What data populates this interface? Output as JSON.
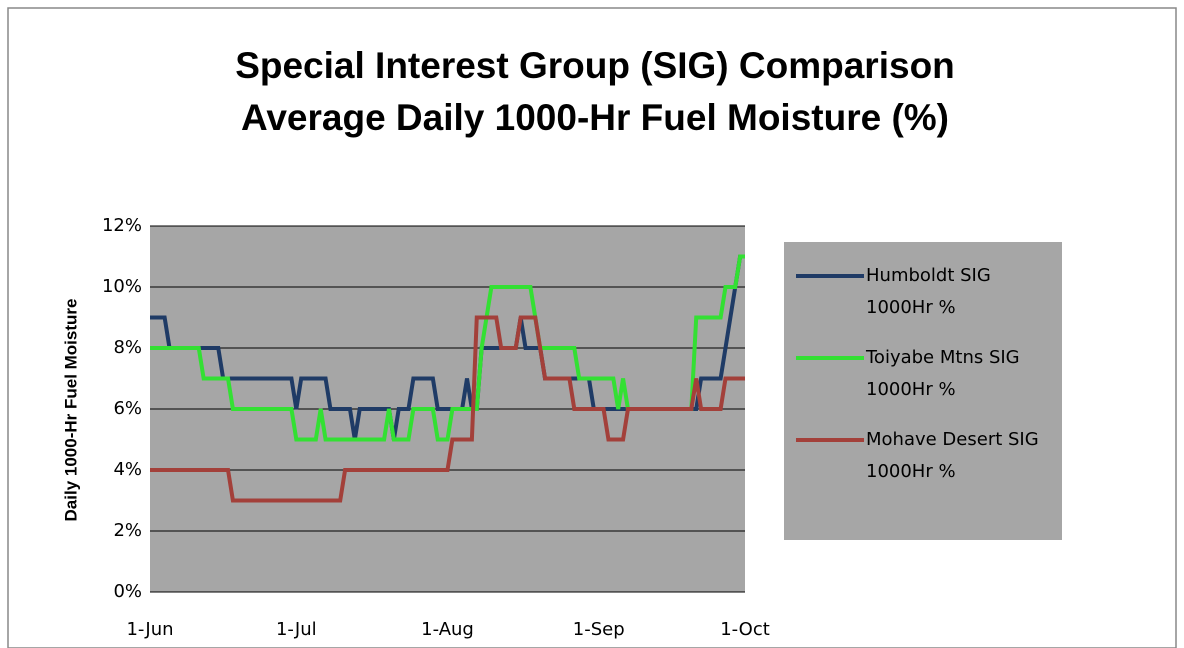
{
  "chart_data": {
    "type": "line",
    "title": "Special Interest Group (SIG) Comparison Average Daily 1000-Hr Fuel Moisture (%)",
    "ylabel": "Daily 1000-Hr Fuel Moisture",
    "categories": [
      "1-Jun",
      null,
      null,
      null,
      null,
      null,
      null,
      null,
      null,
      null,
      null,
      null,
      null,
      null,
      null,
      null,
      null,
      null,
      null,
      null,
      null,
      null,
      null,
      null,
      null,
      null,
      null,
      null,
      null,
      null,
      "1-Jul",
      null,
      null,
      null,
      null,
      null,
      null,
      null,
      null,
      null,
      null,
      null,
      null,
      null,
      null,
      null,
      null,
      null,
      null,
      null,
      null,
      null,
      null,
      null,
      null,
      null,
      null,
      null,
      null,
      null,
      null,
      "1-Aug",
      null,
      null,
      null,
      null,
      null,
      null,
      null,
      null,
      null,
      null,
      null,
      null,
      null,
      null,
      null,
      null,
      null,
      null,
      null,
      null,
      null,
      null,
      null,
      null,
      null,
      null,
      null,
      null,
      null,
      null,
      "1-Sep",
      null,
      null,
      null,
      null,
      null,
      null,
      null,
      null,
      null,
      null,
      null,
      null,
      null,
      null,
      null,
      null,
      null,
      null,
      null,
      null,
      null,
      null,
      null,
      null,
      null,
      null,
      null,
      null,
      null,
      "1-Oct"
    ],
    "series": [
      {
        "name": "Humboldt SIG 1000Hr %",
        "color": "#1f3b66",
        "values": [
          9,
          9,
          9,
          9,
          8,
          8,
          8,
          8,
          8,
          8,
          8,
          8,
          8,
          8,
          8,
          7,
          7,
          7,
          7,
          7,
          7,
          7,
          7,
          7,
          7,
          7,
          7,
          7,
          7,
          7,
          6,
          7,
          7,
          7,
          7,
          7,
          7,
          6,
          6,
          6,
          6,
          6,
          5,
          6,
          6,
          6,
          6,
          6,
          6,
          6,
          5,
          6,
          6,
          6,
          7,
          7,
          7,
          7,
          7,
          6,
          6,
          6,
          6,
          6,
          6,
          7,
          6,
          6,
          8,
          8,
          8,
          8,
          8,
          8,
          8,
          8,
          9,
          8,
          8,
          8,
          8,
          7,
          7,
          7,
          7,
          7,
          7,
          7,
          7,
          7,
          7,
          6,
          6,
          6,
          6,
          6,
          6,
          6,
          6,
          6,
          6,
          6,
          6,
          6,
          6,
          6,
          6,
          6,
          6,
          6,
          6,
          6,
          6,
          7,
          7,
          7,
          7,
          7,
          8,
          9,
          10,
          11,
          11
        ]
      },
      {
        "name": "Toiyabe Mtns SIG 1000Hr %",
        "color": "#33e033",
        "values": [
          8,
          8,
          8,
          8,
          8,
          8,
          8,
          8,
          8,
          8,
          8,
          7,
          7,
          7,
          7,
          7,
          7,
          6,
          6,
          6,
          6,
          6,
          6,
          6,
          6,
          6,
          6,
          6,
          6,
          6,
          5,
          5,
          5,
          5,
          5,
          6,
          5,
          5,
          5,
          5,
          5,
          5,
          5,
          5,
          5,
          5,
          5,
          5,
          5,
          6,
          5,
          5,
          5,
          5,
          6,
          6,
          6,
          6,
          6,
          5,
          5,
          5,
          6,
          6,
          6,
          6,
          6,
          6,
          8,
          9,
          10,
          10,
          10,
          10,
          10,
          10,
          10,
          10,
          10,
          9,
          8,
          8,
          8,
          8,
          8,
          8,
          8,
          8,
          7,
          7,
          7,
          7,
          7,
          7,
          7,
          7,
          6,
          7,
          6,
          6,
          6,
          6,
          6,
          6,
          6,
          6,
          6,
          6,
          6,
          6,
          6,
          6,
          9,
          9,
          9,
          9,
          9,
          9,
          10,
          10,
          10,
          11,
          11
        ]
      },
      {
        "name": "Mohave Desert SIG 1000Hr %",
        "color": "#a3403a",
        "values": [
          4,
          4,
          4,
          4,
          4,
          4,
          4,
          4,
          4,
          4,
          4,
          4,
          4,
          4,
          4,
          4,
          4,
          3,
          3,
          3,
          3,
          3,
          3,
          3,
          3,
          3,
          3,
          3,
          3,
          3,
          3,
          3,
          3,
          3,
          3,
          3,
          3,
          3,
          3,
          3,
          4,
          4,
          4,
          4,
          4,
          4,
          4,
          4,
          4,
          4,
          4,
          4,
          4,
          4,
          4,
          4,
          4,
          4,
          4,
          4,
          4,
          4,
          5,
          5,
          5,
          5,
          5,
          9,
          9,
          9,
          9,
          9,
          8,
          8,
          8,
          8,
          9,
          9,
          9,
          9,
          8,
          7,
          7,
          7,
          7,
          7,
          7,
          6,
          6,
          6,
          6,
          6,
          6,
          6,
          5,
          5,
          5,
          5,
          6,
          6,
          6,
          6,
          6,
          6,
          6,
          6,
          6,
          6,
          6,
          6,
          6,
          6,
          7,
          6,
          6,
          6,
          6,
          6,
          7,
          7,
          7,
          7,
          7
        ]
      }
    ],
    "ylim": [
      0,
      12
    ],
    "yticks": [
      {
        "value": 0,
        "label": "0%"
      },
      {
        "value": 2,
        "label": "2%"
      },
      {
        "value": 4,
        "label": "4%"
      },
      {
        "value": 6,
        "label": "6%"
      },
      {
        "value": 8,
        "label": "8%"
      },
      {
        "value": 10,
        "label": "10%"
      },
      {
        "value": 12,
        "label": "12%"
      }
    ],
    "grid": true,
    "legend": "right",
    "plot_background": "#a6a6a6"
  }
}
